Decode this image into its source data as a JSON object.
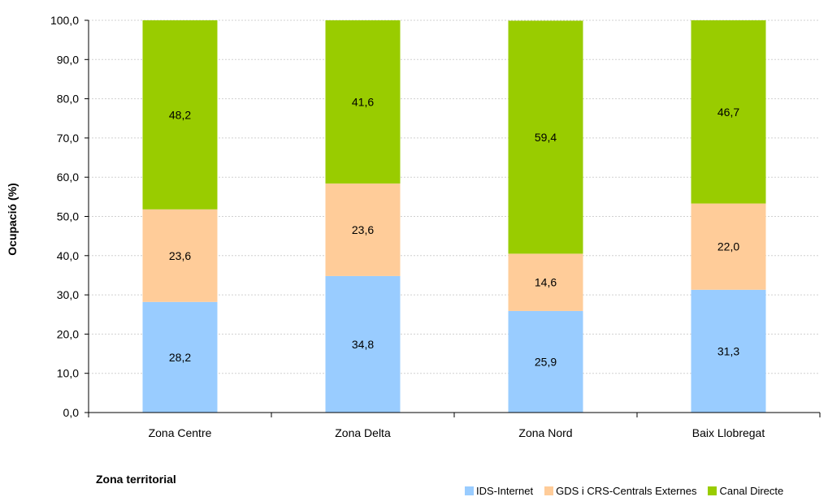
{
  "chart_data": {
    "type": "bar",
    "stacked": true,
    "categories": [
      "Zona Centre",
      "Zona Delta",
      "Zona Nord",
      "Baix Llobregat"
    ],
    "series": [
      {
        "name": "IDS-Internet",
        "color": "#99ccff",
        "values": [
          28.2,
          34.8,
          25.9,
          31.3
        ],
        "labels": [
          "28,2",
          "34,8",
          "25,9",
          "31,3"
        ]
      },
      {
        "name": "GDS i CRS-Centrals Externes",
        "color": "#ffcc99",
        "values": [
          23.6,
          23.6,
          14.6,
          22.0
        ],
        "labels": [
          "23,6",
          "23,6",
          "14,6",
          "22,0"
        ]
      },
      {
        "name": "Canal Directe",
        "color": "#99cc00",
        "values": [
          48.2,
          41.6,
          59.4,
          46.7
        ],
        "labels": [
          "48,2",
          "41,6",
          "59,4",
          "46,7"
        ]
      }
    ],
    "yticks": [
      "0,0",
      "10,0",
      "20,0",
      "30,0",
      "40,0",
      "50,0",
      "60,0",
      "70,0",
      "80,0",
      "90,0",
      "100,0"
    ],
    "ylim": [
      0,
      100
    ],
    "xlabel": "Zona territorial",
    "ylabel": "Ocupació (%)",
    "grid": true,
    "legend": "bottom-right"
  }
}
